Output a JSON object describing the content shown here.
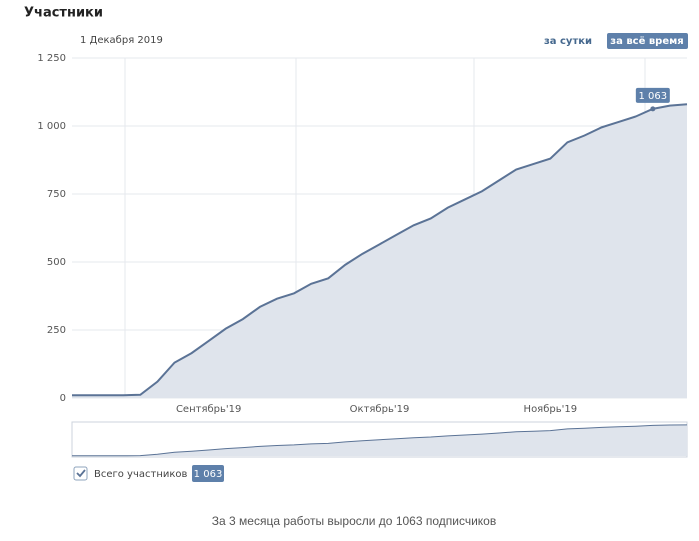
{
  "chart_data": {
    "type": "area",
    "title": "Участники",
    "subtitle": "1 Декабря 2019",
    "buttons": [
      "за сутки",
      "за всё время"
    ],
    "categories": [
      null,
      null,
      null,
      null,
      null,
      null,
      null,
      null,
      "Сентябрь'19",
      null,
      null,
      null,
      null,
      null,
      null,
      null,
      null,
      null,
      "Октябрь'19",
      null,
      null,
      null,
      null,
      null,
      null,
      null,
      null,
      null,
      "Ноябрь'19",
      null,
      null,
      null,
      null,
      null,
      null,
      null,
      null
    ],
    "series": [
      {
        "name": "Всего участников",
        "color": "#5b7396",
        "fill": "#dfe4ec",
        "values": [
          10,
          10,
          10,
          10,
          12,
          60,
          130,
          165,
          210,
          255,
          290,
          335,
          365,
          385,
          420,
          440,
          490,
          530,
          565,
          600,
          635,
          660,
          700,
          730,
          760,
          800,
          840,
          860,
          880,
          940,
          965,
          995,
          1015,
          1035,
          1063,
          1075,
          1080
        ]
      }
    ],
    "legend_badge": "1 063",
    "annotation": "1 063",
    "ylim": [
      0,
      1250
    ],
    "yticks": [
      0,
      250,
      500,
      750,
      {
        "value": 1000,
        "label": "1 000"
      },
      {
        "value": 1250,
        "label": "1 250"
      }
    ],
    "grid": true,
    "caption": "За 3 месяца работы выросли до 1063 подписчиков"
  }
}
